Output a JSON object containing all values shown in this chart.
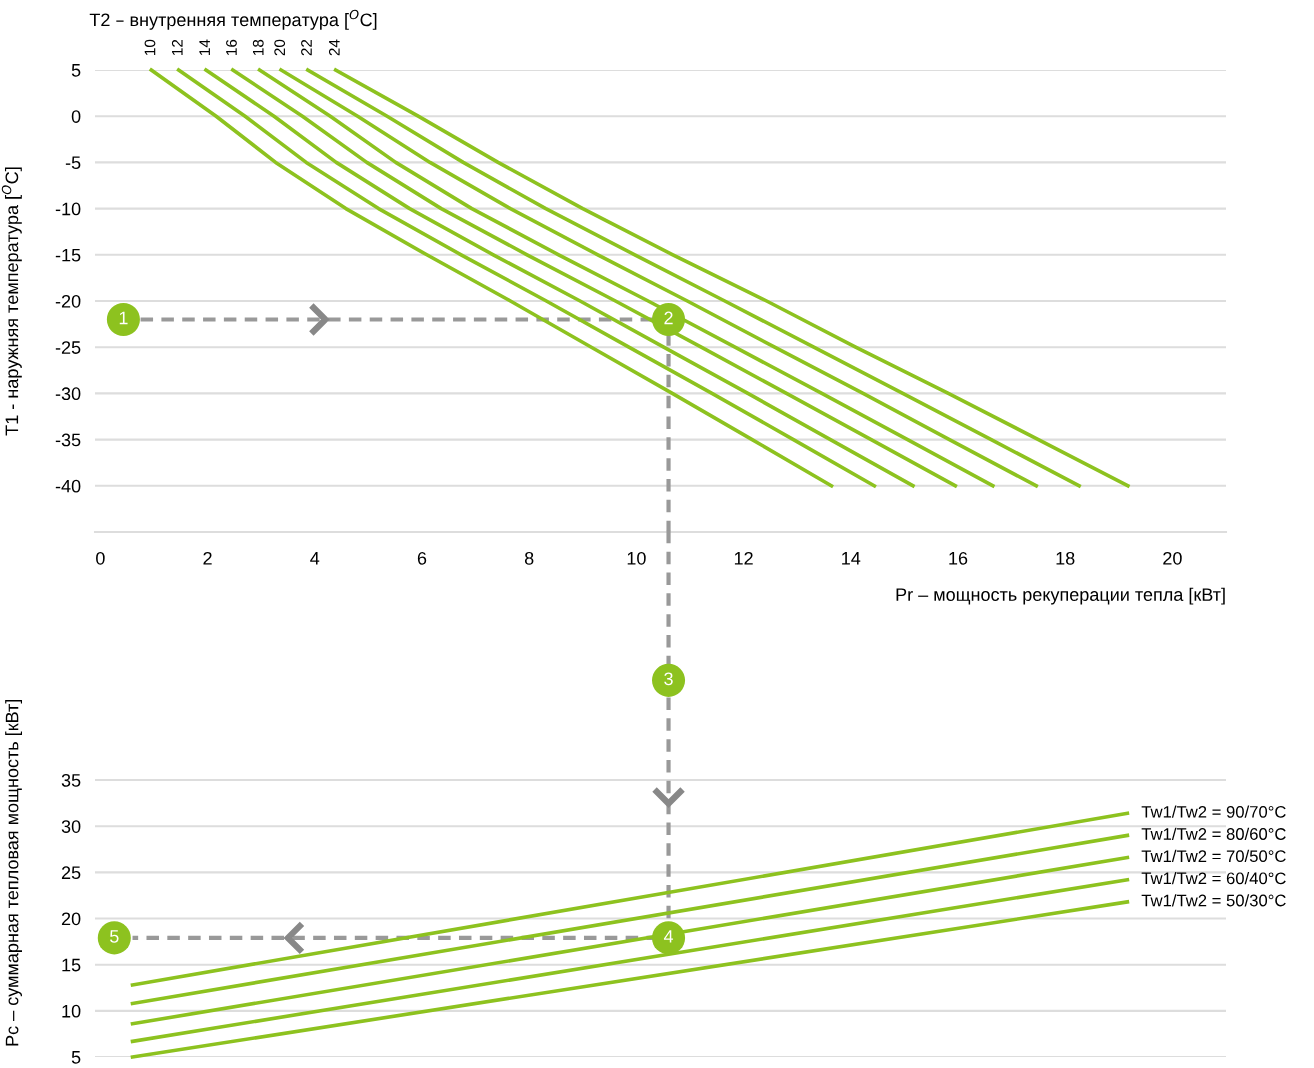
{
  "chart_data": [
    {
      "type": "line",
      "title": "T2 – внутренняя температура [$^{O}$C]",
      "xlabel": "Pr – мощность рекуперации тепла [кВт]",
      "ylabel": "T1 - наружняя температура [$^{O}$C]",
      "xlim": [
        -0.1,
        21
      ],
      "xticks": [
        0,
        2,
        4,
        6,
        8,
        10,
        12,
        14,
        16,
        18,
        20
      ],
      "ylim": [
        -45,
        5
      ],
      "yticks": [
        5,
        0,
        -5,
        -10,
        -15,
        -20,
        -25,
        -30,
        -35,
        -40
      ],
      "grid": "y",
      "series": [
        {
          "name": "10",
          "color": "#8dc21f",
          "x": [
            0.95,
            2.16,
            3.27,
            4.58,
            6.09,
            7.65,
            9.16,
            10.67,
            12.16,
            13.64
          ],
          "values": [
            5,
            0,
            -5,
            -10,
            -15,
            -20,
            -25,
            -30,
            -35,
            -40
          ]
        },
        {
          "name": "12",
          "color": "#8dc21f",
          "x": [
            1.46,
            2.7,
            3.84,
            5.19,
            6.73,
            8.32,
            9.86,
            11.41,
            12.93,
            14.44
          ],
          "values": [
            5,
            0,
            -5,
            -10,
            -15,
            -20,
            -25,
            -30,
            -35,
            -40
          ]
        },
        {
          "name": "14",
          "color": "#8dc21f",
          "x": [
            1.97,
            3.24,
            4.4,
            5.77,
            7.33,
            8.95,
            10.51,
            12.08,
            13.62,
            15.16
          ],
          "values": [
            5,
            0,
            -5,
            -10,
            -15,
            -20,
            -25,
            -30,
            -35,
            -40
          ]
        },
        {
          "name": "16",
          "color": "#8dc21f",
          "x": [
            2.47,
            3.77,
            4.97,
            6.36,
            7.96,
            9.61,
            11.21,
            12.8,
            14.38,
            15.95
          ],
          "values": [
            5,
            0,
            -5,
            -10,
            -15,
            -20,
            -25,
            -30,
            -35,
            -40
          ]
        },
        {
          "name": "18",
          "color": "#8dc21f",
          "x": [
            2.97,
            4.29,
            5.51,
            6.93,
            8.55,
            10.22,
            11.84,
            13.46,
            15.06,
            16.65
          ],
          "values": [
            5,
            0,
            -5,
            -10,
            -15,
            -20,
            -25,
            -30,
            -35,
            -40
          ]
        },
        {
          "name": "20",
          "color": "#8dc21f",
          "x": [
            3.37,
            4.8,
            6.15,
            7.65,
            9.28,
            10.95,
            12.58,
            14.23,
            15.84,
            17.46
          ],
          "values": [
            5,
            0,
            -5,
            -10,
            -15,
            -20,
            -25,
            -30,
            -35,
            -40
          ]
        },
        {
          "name": "22",
          "color": "#8dc21f",
          "x": [
            3.87,
            5.35,
            6.77,
            8.31,
            9.97,
            11.65,
            13.31,
            14.97,
            16.62,
            18.26
          ],
          "values": [
            5,
            0,
            -5,
            -10,
            -15,
            -20,
            -25,
            -30,
            -35,
            -40
          ]
        },
        {
          "name": "24",
          "color": "#8dc21f",
          "x": [
            4.39,
            5.93,
            7.42,
            9.0,
            10.68,
            12.43,
            14.09,
            15.82,
            17.5,
            19.17
          ],
          "values": [
            5,
            0,
            -5,
            -10,
            -15,
            -20,
            -25,
            -30,
            -35,
            -40
          ]
        },
        {
          "type": "line",
          "line_style": "dashed",
          "color": "#999999",
          "x": [
            0.75,
            10.6,
            10.6
          ],
          "values": [
            -22,
            -22,
            -45
          ]
        }
      ],
      "annotations": [
        {
          "text": "1",
          "x": 0.43,
          "y": -22
        },
        {
          "text": "2",
          "x": 10.6,
          "y": -22
        }
      ]
    },
    {
      "type": "line",
      "ylabel": "Pc – суммарная тепловая мощность [кВт]",
      "xlim": [
        -0.1,
        21
      ],
      "ylim": [
        5,
        62
      ],
      "yticks": [
        5,
        10,
        15,
        20,
        25,
        30,
        35
      ],
      "grid": "y",
      "tick_labels": "y",
      "series": [
        {
          "name": "Tw1/Tw2 = 90/70°C",
          "color": "#8dc21f",
          "x": [
            0.6,
            19.16
          ],
          "values": [
            12.8,
            31.4
          ]
        },
        {
          "name": "Tw1/Tw2 = 80/60°C",
          "color": "#8dc21f",
          "x": [
            0.6,
            19.16
          ],
          "values": [
            10.8,
            29.0
          ]
        },
        {
          "name": "Tw1/Tw2 = 70/50°C",
          "color": "#8dc21f",
          "x": [
            0.6,
            19.16
          ],
          "values": [
            8.6,
            26.6
          ]
        },
        {
          "name": "Tw1/Tw2 = 60/40°C",
          "color": "#8dc21f",
          "x": [
            0.6,
            19.16
          ],
          "values": [
            6.7,
            24.2
          ]
        },
        {
          "name": "Tw1/Tw2 = 50/30°C",
          "color": "#8dc21f",
          "x": [
            0.6,
            19.16
          ],
          "values": [
            5,
            21.8
          ]
        },
        {
          "type": "line",
          "line_style": "dashed",
          "color": "#999999",
          "x": [
            10.6,
            10.6,
            0.6
          ],
          "values": [
            62,
            17.9,
            17.9
          ]
        }
      ],
      "annotations": [
        {
          "text": "3",
          "x": 10.6,
          "y": 45.8
        },
        {
          "text": "4",
          "x": 10.6,
          "y": 17.9
        },
        {
          "text": "5",
          "x": 0.26,
          "y": 17.9
        }
      ]
    }
  ]
}
